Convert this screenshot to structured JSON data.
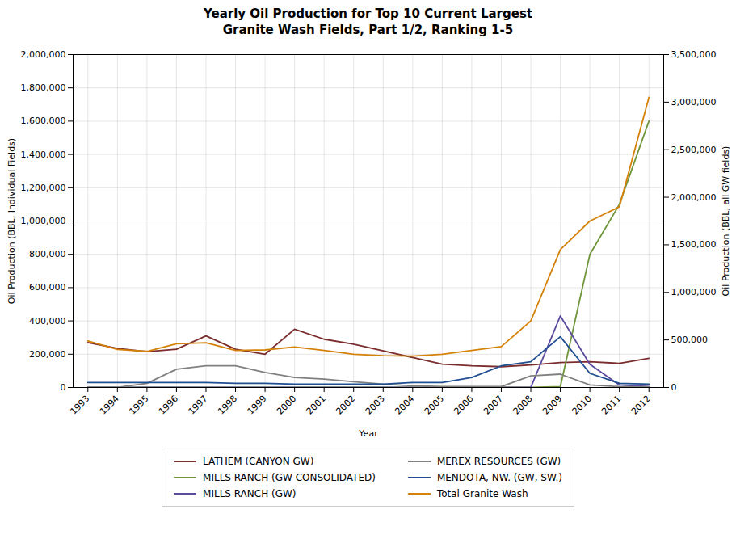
{
  "chart_data": {
    "type": "line",
    "title": "Yearly Oil Production for Top 10 Current Largest\nGranite Wash Fields, Part 1/2, Ranking 1-5",
    "xlabel": "Year",
    "ylabel": "Oil Production (BBL, Individual Fields)",
    "y2label": "Oil Production (BBL, all GW fields)",
    "x": [
      1993,
      1994,
      1995,
      1996,
      1997,
      1998,
      1999,
      2000,
      2001,
      2002,
      2003,
      2004,
      2005,
      2006,
      2007,
      2008,
      2009,
      2010,
      2011,
      2012
    ],
    "series": [
      {
        "name": "LATHEM (CANYON GW)",
        "color": "#7B2D2D",
        "values": [
          270000,
          235000,
          215000,
          230000,
          310000,
          230000,
          200000,
          350000,
          290000,
          260000,
          220000,
          180000,
          140000,
          130000,
          125000,
          135000,
          150000,
          155000,
          145000,
          175000
        ]
      },
      {
        "name": "MILLS RANCH (GW CONSOLIDATED)",
        "color": "#70963C",
        "values": [
          0,
          0,
          0,
          0,
          0,
          0,
          0,
          0,
          0,
          0,
          0,
          0,
          0,
          0,
          0,
          0,
          5000,
          800000,
          1100000,
          1600000
        ]
      },
      {
        "name": "MILLS RANCH (GW)",
        "color": "#5B4A9E",
        "values": [
          0,
          0,
          0,
          0,
          0,
          0,
          0,
          0,
          0,
          0,
          0,
          0,
          0,
          0,
          0,
          0,
          430000,
          140000,
          15000,
          5000
        ]
      },
      {
        "name": "MEREX RESOURCES (GW)",
        "color": "#808080",
        "values": [
          0,
          0,
          25000,
          110000,
          130000,
          130000,
          90000,
          60000,
          50000,
          35000,
          20000,
          10000,
          5000,
          5000,
          5000,
          70000,
          80000,
          15000,
          5000,
          3000
        ]
      },
      {
        "name": "MENDOTA, NW. (GW, SW.)",
        "color": "#1F4E91",
        "values": [
          30000,
          30000,
          30000,
          30000,
          30000,
          25000,
          25000,
          20000,
          20000,
          20000,
          20000,
          30000,
          30000,
          60000,
          130000,
          155000,
          305000,
          85000,
          25000,
          20000
        ]
      },
      {
        "name": "Total Granite Wash",
        "color": "#D4820A",
        "axis": "y2",
        "values": [
          490000,
          400000,
          380000,
          460000,
          470000,
          390000,
          395000,
          425000,
          390000,
          350000,
          335000,
          330000,
          350000,
          390000,
          430000,
          700000,
          1450000,
          1750000,
          1900000,
          3050000
        ]
      }
    ],
    "xlim": [
      1992.5,
      2012.5
    ],
    "xticks": [
      1993,
      1994,
      1995,
      1996,
      1997,
      1998,
      1999,
      2000,
      2001,
      2002,
      2003,
      2004,
      2005,
      2006,
      2007,
      2008,
      2009,
      2010,
      2011,
      2012
    ],
    "ylim": [
      0,
      2000000
    ],
    "yticks": [
      0,
      {
        "value": 200000,
        "label": "200,000"
      },
      {
        "value": 400000,
        "label": "400,000"
      },
      {
        "value": 600000,
        "label": "600,000"
      },
      {
        "value": 800000,
        "label": "800,000"
      },
      {
        "value": 1000000,
        "label": "1,000,000"
      },
      {
        "value": 1200000,
        "label": "1,200,000"
      },
      {
        "value": 1400000,
        "label": "1,400,000"
      },
      {
        "value": 1600000,
        "label": "1,600,000"
      },
      {
        "value": 1800000,
        "label": "1,800,000"
      },
      {
        "value": 2000000,
        "label": "2,000,000"
      }
    ],
    "y2lim": [
      0,
      3500000
    ],
    "y2ticks": [
      0,
      {
        "value": 500000,
        "label": "500,000"
      },
      {
        "value": 1000000,
        "label": "1,000,000"
      },
      {
        "value": 1500000,
        "label": "1,500,000"
      },
      {
        "value": 2000000,
        "label": "2,000,000"
      },
      {
        "value": 2500000,
        "label": "2,500,000"
      },
      {
        "value": 3000000,
        "label": "3,000,000"
      },
      {
        "value": 3500000,
        "label": "3,500,000"
      }
    ],
    "grid": true,
    "legend": "bottom"
  }
}
